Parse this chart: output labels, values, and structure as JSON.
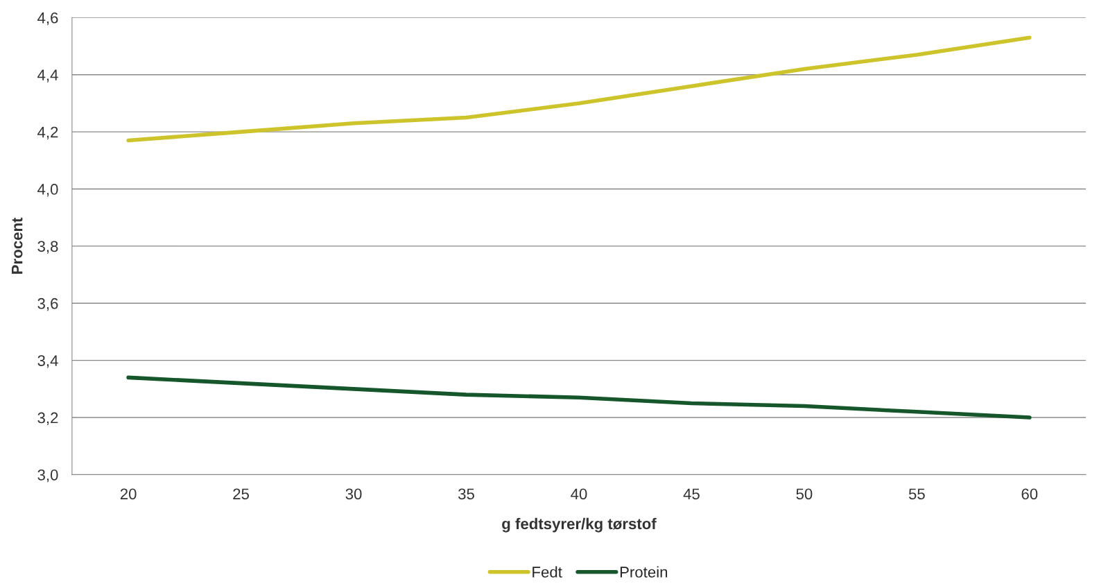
{
  "chart_data": {
    "type": "line",
    "xlabel": "g fedtsyrer/kg tørstof",
    "ylabel": "Procent",
    "categories": [
      "20",
      "25",
      "30",
      "35",
      "40",
      "45",
      "50",
      "55",
      "60"
    ],
    "series": [
      {
        "name": "Fedt",
        "color": "#cdc42c",
        "values": [
          4.17,
          4.2,
          4.23,
          4.25,
          4.3,
          4.36,
          4.42,
          4.47,
          4.53
        ]
      },
      {
        "name": "Protein",
        "color": "#15572b",
        "values": [
          3.34,
          3.32,
          3.3,
          3.28,
          3.27,
          3.25,
          3.24,
          3.22,
          3.2
        ]
      }
    ],
    "ylim": [
      3.0,
      4.6
    ],
    "yticks": [
      {
        "value": 3.0,
        "label": "3,0"
      },
      {
        "value": 3.2,
        "label": "3,2"
      },
      {
        "value": 3.4,
        "label": "3,4"
      },
      {
        "value": 3.6,
        "label": "3,6"
      },
      {
        "value": 3.8,
        "label": "3,8"
      },
      {
        "value": 4.0,
        "label": "4,0"
      },
      {
        "value": 4.2,
        "label": "4,2"
      },
      {
        "value": 4.4,
        "label": "4,4"
      },
      {
        "value": 4.6,
        "label": "4,6"
      }
    ],
    "grid": "y",
    "legend": "bottom",
    "marker": "none",
    "line_style": "solid"
  }
}
